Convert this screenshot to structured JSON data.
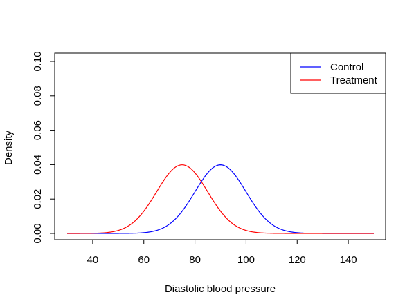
{
  "chart_data": {
    "type": "line",
    "title": "",
    "xlabel": "Diastolic blood pressure",
    "ylabel": "Density",
    "xlim": [
      30,
      150
    ],
    "ylim": [
      0,
      0.1
    ],
    "x_ticks": [
      "40",
      "60",
      "80",
      "100",
      "120",
      "140"
    ],
    "y_ticks": [
      "0.00",
      "0.02",
      "0.04",
      "0.06",
      "0.08",
      "0.10"
    ],
    "grid": false,
    "legend_position": "top-right",
    "series": [
      {
        "name": "Control",
        "color": "#0000ff",
        "distribution": "normal",
        "mean": 90,
        "sd": 10,
        "x_range": [
          30,
          150
        ]
      },
      {
        "name": "Treatment",
        "color": "#ff0000",
        "distribution": "normal",
        "mean": 75,
        "sd": 10,
        "x_range": [
          30,
          150
        ]
      }
    ]
  }
}
